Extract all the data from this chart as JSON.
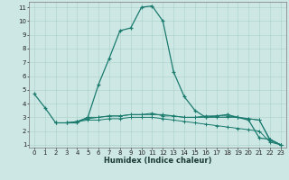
{
  "xlabel": "Humidex (Indice chaleur)",
  "ylabel": "",
  "bg_color": "#cde8e4",
  "grid_color": "#aacfca",
  "line_color": "#1a7a6e",
  "xlim": [
    -0.5,
    23.5
  ],
  "ylim": [
    0.8,
    11.4
  ],
  "yticks": [
    1,
    2,
    3,
    4,
    5,
    6,
    7,
    8,
    9,
    10,
    11
  ],
  "xticks": [
    0,
    1,
    2,
    3,
    4,
    5,
    6,
    7,
    8,
    9,
    10,
    11,
    12,
    13,
    14,
    15,
    16,
    17,
    18,
    19,
    20,
    21,
    22,
    23
  ],
  "line1_x": [
    0,
    1,
    2,
    3,
    4,
    5,
    6,
    7,
    8,
    9,
    10,
    11,
    12,
    13,
    14,
    15,
    16,
    17,
    18,
    19,
    20,
    21,
    22,
    23
  ],
  "line1_y": [
    4.7,
    3.7,
    2.6,
    2.6,
    2.6,
    3.0,
    5.4,
    7.3,
    9.3,
    9.5,
    11.0,
    11.1,
    10.0,
    6.3,
    4.5,
    3.5,
    3.0,
    3.1,
    3.2,
    3.0,
    2.8,
    1.5,
    1.4,
    1.0
  ],
  "line2_x": [
    2,
    3,
    4,
    5,
    6,
    7,
    8,
    9,
    10,
    11,
    12,
    13,
    14,
    15,
    16,
    17,
    18,
    19,
    20,
    21,
    22,
    23
  ],
  "line2_y": [
    2.6,
    2.6,
    2.7,
    3.0,
    3.0,
    3.1,
    3.1,
    3.2,
    3.2,
    3.2,
    3.2,
    3.1,
    3.0,
    3.0,
    3.0,
    3.0,
    3.0,
    3.0,
    2.9,
    2.8,
    1.3,
    1.0
  ],
  "line3_x": [
    2,
    3,
    4,
    5,
    6,
    7,
    8,
    9,
    10,
    11,
    12,
    13,
    14,
    15,
    16,
    17,
    18,
    19,
    20,
    21,
    22,
    23
  ],
  "line3_y": [
    2.6,
    2.6,
    2.7,
    2.8,
    2.8,
    2.9,
    2.9,
    3.0,
    3.0,
    3.0,
    2.9,
    2.8,
    2.7,
    2.6,
    2.5,
    2.4,
    2.3,
    2.2,
    2.1,
    2.0,
    1.2,
    1.0
  ],
  "line4_x": [
    4,
    5,
    6,
    7,
    8,
    9,
    10,
    11,
    12,
    13,
    14,
    15,
    16,
    17,
    18,
    19,
    20,
    21,
    22,
    23
  ],
  "line4_y": [
    2.7,
    2.9,
    3.0,
    3.1,
    3.1,
    3.2,
    3.2,
    3.3,
    3.1,
    3.1,
    3.0,
    3.0,
    3.1,
    3.1,
    3.1,
    3.0,
    2.9,
    2.8,
    1.4,
    1.0
  ],
  "tick_fontsize": 5.0,
  "xlabel_fontsize": 6.0,
  "marker_size": 3.0,
  "line1_lw": 0.9,
  "other_lw": 0.7
}
